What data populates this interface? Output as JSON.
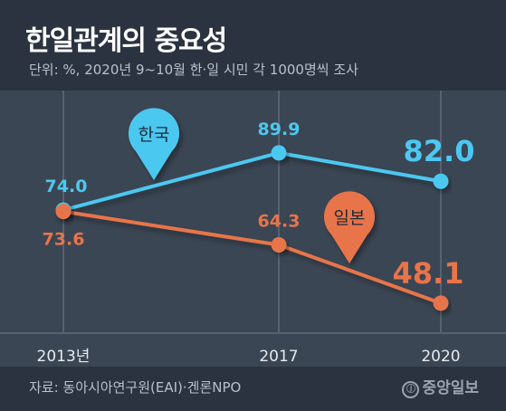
{
  "title": "한일관계의 중요성",
  "subtitle": "단위: %, 2020년 9~10월 한·일 시민 각 1000명씩 조사",
  "source": "자료: 동아시아연구원(EAI)·겐론NPO",
  "logo": {
    "icon": "ⓙ",
    "text": "중앙일보"
  },
  "chart_data": {
    "type": "line",
    "x": [
      "2013년",
      "2017",
      "2020"
    ],
    "series": [
      {
        "name": "한국",
        "values": [
          74.0,
          89.9,
          82.0
        ],
        "labels": [
          "74.0",
          "89.9",
          "82.0"
        ],
        "color": "#4cc8f0"
      },
      {
        "name": "일본",
        "values": [
          73.6,
          64.3,
          48.1
        ],
        "labels": [
          "73.6",
          "64.3",
          "48.1"
        ],
        "color": "#e8744a"
      }
    ],
    "grid": true,
    "legend": "callout bubbles"
  }
}
